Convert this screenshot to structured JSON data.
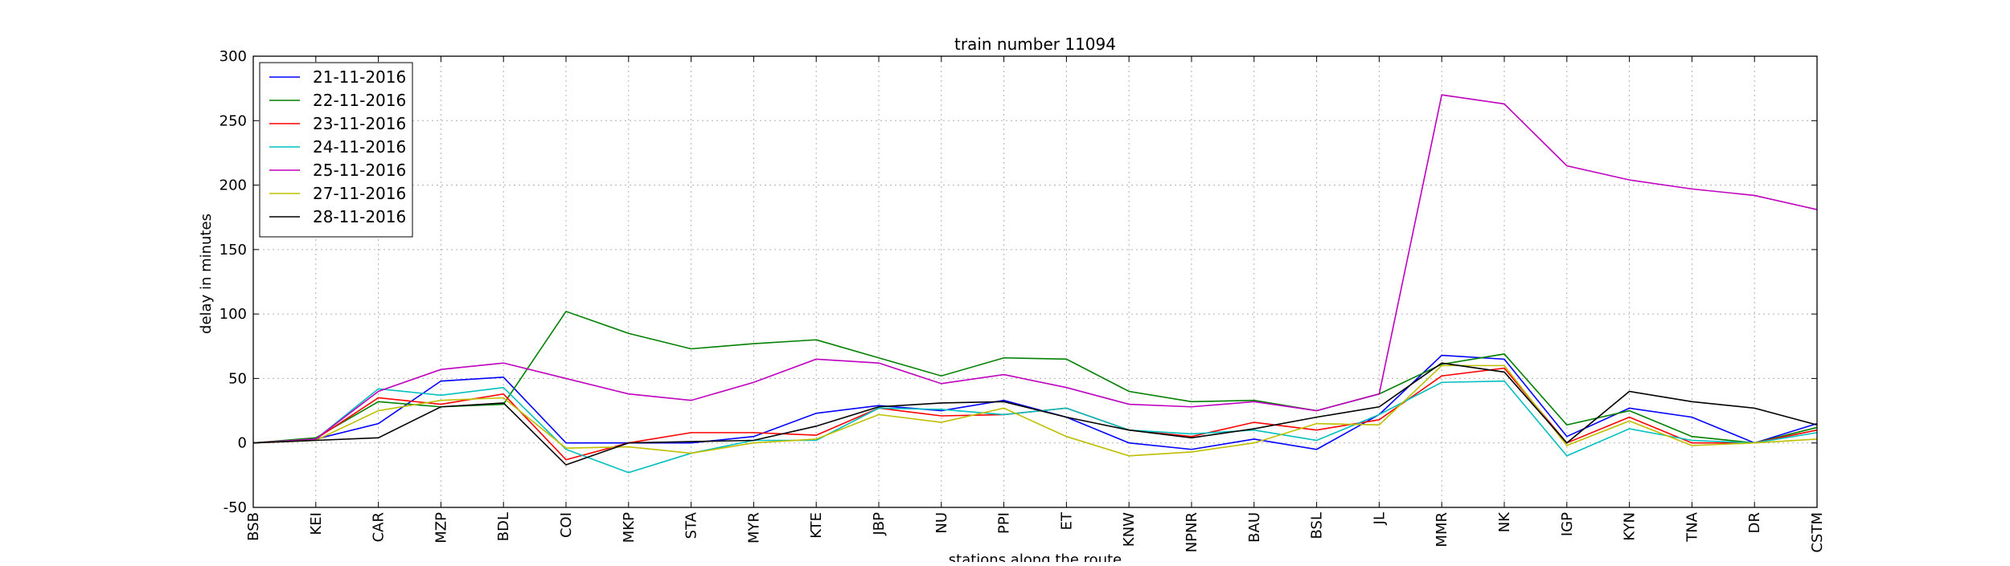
{
  "chart_data": {
    "type": "line",
    "title": "train number 11094",
    "xlabel": "stations along the route",
    "ylabel": "delay in minutes",
    "categories": [
      "BSB",
      "KEI",
      "CAR",
      "MZP",
      "BDL",
      "COI",
      "MKP",
      "STA",
      "MYR",
      "KTE",
      "JBP",
      "NU",
      "PPI",
      "ET",
      "KNW",
      "NPNR",
      "BAU",
      "BSL",
      "JL",
      "MMR",
      "NK",
      "IGP",
      "KYN",
      "TNA",
      "DR",
      "CSTM"
    ],
    "ylim": [
      -50,
      300
    ],
    "yticks": [
      -50,
      0,
      50,
      100,
      150,
      200,
      250,
      300
    ],
    "grid": true,
    "legend_position": "top-left",
    "series": [
      {
        "name": "21-11-2016",
        "color": "#0000ff",
        "values": [
          0,
          3,
          15,
          48,
          51,
          0,
          0,
          0,
          5,
          23,
          29,
          25,
          33,
          20,
          0,
          -5,
          3,
          -5,
          22,
          68,
          65,
          5,
          27,
          20,
          0,
          15
        ]
      },
      {
        "name": "22-11-2016",
        "color": "#008000",
        "values": [
          0,
          4,
          32,
          28,
          30,
          102,
          85,
          73,
          77,
          80,
          66,
          52,
          66,
          65,
          40,
          32,
          33,
          25,
          38,
          61,
          69,
          14,
          25,
          5,
          0,
          12
        ]
      },
      {
        "name": "23-11-2016",
        "color": "#ff0000",
        "values": [
          0,
          3,
          35,
          30,
          38,
          -13,
          0,
          8,
          8,
          6,
          27,
          21,
          22,
          27,
          10,
          5,
          16,
          10,
          18,
          52,
          58,
          0,
          20,
          0,
          0,
          10
        ]
      },
      {
        "name": "24-11-2016",
        "color": "#00bfbf",
        "values": [
          0,
          3,
          42,
          37,
          43,
          -5,
          -23,
          -8,
          2,
          2,
          27,
          26,
          22,
          27,
          10,
          7,
          10,
          2,
          22,
          47,
          48,
          -10,
          11,
          2,
          0,
          8
        ]
      },
      {
        "name": "25-11-2016",
        "color": "#bf00bf",
        "values": [
          0,
          3,
          40,
          57,
          62,
          50,
          38,
          33,
          47,
          65,
          62,
          46,
          53,
          43,
          30,
          28,
          32,
          25,
          38,
          270,
          263,
          215,
          204,
          197,
          192,
          181
        ]
      },
      {
        "name": "27-11-2016",
        "color": "#bfbf00",
        "values": [
          0,
          2,
          25,
          33,
          35,
          -4,
          -3,
          -8,
          0,
          3,
          22,
          16,
          27,
          5,
          -10,
          -7,
          0,
          15,
          14,
          60,
          60,
          -2,
          17,
          -2,
          0,
          3
        ]
      },
      {
        "name": "28-11-2016",
        "color": "#000000",
        "values": [
          0,
          2,
          4,
          28,
          31,
          -17,
          0,
          1,
          2,
          13,
          28,
          31,
          32,
          20,
          10,
          4,
          11,
          20,
          28,
          62,
          55,
          0,
          40,
          32,
          27,
          14
        ]
      }
    ]
  }
}
